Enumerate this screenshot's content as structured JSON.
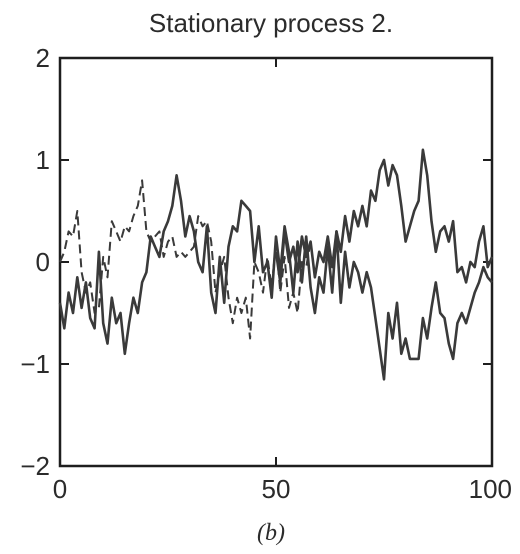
{
  "chart_data": {
    "type": "line",
    "title": "Stationary process 2.",
    "caption": "(b)",
    "xlabel": "",
    "ylabel": "",
    "xlim": [
      0,
      100
    ],
    "ylim": [
      -2,
      2
    ],
    "xticks": [
      0,
      50,
      100
    ],
    "xtick_labels": [
      "0",
      "50",
      "100"
    ],
    "yticks": [
      2,
      1,
      0,
      -1,
      -2
    ],
    "ytick_labels": [
      "2",
      "1",
      "0",
      "−1",
      "−2"
    ],
    "grid": false,
    "legend": "none",
    "colors": {
      "line": "#3a3a3a",
      "axis": "#1e1e1e",
      "text": "#2b2b2b"
    },
    "series": [
      {
        "style": "dashed",
        "x": [
          0,
          1,
          2,
          3,
          4,
          5,
          6,
          7,
          8,
          9,
          10,
          11,
          12,
          13,
          14,
          15,
          16,
          17,
          18,
          19,
          20,
          21,
          22,
          23,
          24,
          25,
          26,
          27,
          28,
          29,
          30,
          31,
          32,
          33,
          34,
          35,
          36,
          37,
          38,
          39,
          40,
          41,
          42,
          43,
          44,
          45,
          46,
          47,
          48,
          49,
          50,
          51,
          52,
          53,
          54,
          55,
          56,
          57,
          58
        ],
        "values": [
          0.0,
          0.1,
          0.3,
          0.25,
          0.5,
          -0.1,
          -0.3,
          -0.2,
          -0.5,
          -0.45,
          0.05,
          -0.15,
          0.4,
          0.3,
          0.2,
          0.35,
          0.3,
          0.45,
          0.55,
          0.8,
          0.3,
          0.2,
          0.25,
          0.3,
          0.05,
          0.2,
          0.25,
          0.05,
          0.1,
          0.05,
          0.1,
          0.15,
          0.45,
          0.35,
          0.4,
          0.2,
          -0.3,
          -0.1,
          0.05,
          -0.35,
          -0.6,
          -0.35,
          -0.5,
          -0.35,
          -0.75,
          0.0,
          -0.1,
          -0.3,
          0.05,
          -0.25,
          0.2,
          -0.3,
          0.05,
          -0.45,
          -0.3,
          -0.5,
          0.0,
          -0.05,
          0.2
        ]
      },
      {
        "style": "solid",
        "x": [
          0,
          1,
          2,
          3,
          4,
          5,
          6,
          7,
          8,
          9,
          10,
          11,
          12,
          13,
          14,
          15,
          16,
          17,
          18,
          19,
          20,
          21,
          22,
          23,
          24,
          25,
          26,
          27,
          28,
          29,
          30,
          31,
          32,
          33,
          34,
          35,
          36,
          37,
          38,
          39,
          40,
          41,
          42,
          43,
          44,
          45,
          46,
          47,
          48,
          49,
          50,
          51,
          52,
          53,
          54,
          55,
          56,
          57,
          58,
          59,
          60,
          61,
          62,
          63,
          64,
          65,
          66,
          67,
          68,
          69,
          70,
          71,
          72,
          73,
          74,
          75,
          76,
          77,
          78,
          79,
          80,
          81,
          82,
          83,
          84,
          85,
          86,
          87,
          88,
          89,
          90,
          91,
          92,
          93,
          94,
          95,
          96,
          97,
          98,
          99,
          100
        ],
        "values": [
          -0.4,
          -0.65,
          -0.3,
          -0.5,
          -0.15,
          -0.45,
          -0.2,
          -0.55,
          -0.65,
          0.1,
          -0.6,
          -0.8,
          -0.35,
          -0.6,
          -0.5,
          -0.9,
          -0.6,
          -0.35,
          -0.5,
          -0.2,
          -0.1,
          0.25,
          0.15,
          0.05,
          0.3,
          0.4,
          0.55,
          0.85,
          0.6,
          0.25,
          0.45,
          0.3,
          0.0,
          -0.1,
          0.35,
          -0.3,
          -0.5,
          0.05,
          -0.4,
          0.15,
          0.35,
          0.3,
          0.6,
          0.55,
          0.5,
          0.0,
          0.35,
          -0.1,
          0.0,
          -0.35,
          0.25,
          -0.1,
          0.35,
          0.1,
          -0.3,
          0.2,
          -0.2,
          0.25,
          -0.25,
          -0.5,
          -0.15,
          -0.3,
          0.15,
          -0.3,
          0.3,
          -0.4,
          0.1,
          -0.25,
          0.0,
          -0.1,
          -0.3,
          -0.1,
          -0.25,
          -0.55,
          -0.85,
          -1.15,
          -0.5,
          -0.75,
          -0.4,
          -0.9,
          -0.75,
          -0.95,
          -0.95,
          -0.95,
          -0.55,
          -0.75,
          -0.45,
          -0.2,
          -0.5,
          -0.55,
          -0.8,
          -0.95,
          -0.6,
          -0.5,
          -0.6,
          -0.45,
          -0.3,
          -0.2,
          -0.05,
          -0.15,
          -0.2
        ]
      },
      {
        "style": "solid",
        "x": [
          50,
          51,
          52,
          53,
          54,
          55,
          56,
          57,
          58,
          59,
          60,
          61,
          62,
          63,
          64,
          65,
          66,
          67,
          68,
          69,
          70,
          71,
          72,
          73,
          74,
          75,
          76,
          77,
          78,
          79,
          80,
          81,
          82,
          83,
          84,
          85,
          86,
          87,
          88,
          89,
          90,
          91,
          92,
          93,
          94,
          95,
          96,
          97,
          98,
          99,
          100
        ],
        "values": [
          0.1,
          -0.2,
          0.3,
          0.0,
          0.15,
          -0.1,
          0.25,
          0.05,
          0.2,
          -0.15,
          0.1,
          0.0,
          0.25,
          -0.05,
          0.3,
          0.1,
          0.45,
          0.2,
          0.5,
          0.35,
          0.55,
          0.35,
          0.7,
          0.6,
          0.9,
          1.0,
          0.75,
          0.95,
          0.85,
          0.55,
          0.2,
          0.35,
          0.5,
          0.6,
          1.1,
          0.85,
          0.4,
          0.1,
          0.3,
          0.35,
          0.2,
          0.4,
          -0.1,
          -0.05,
          -0.2,
          0.0,
          -0.05,
          0.2,
          0.35,
          -0.05,
          0.05
        ]
      }
    ]
  }
}
